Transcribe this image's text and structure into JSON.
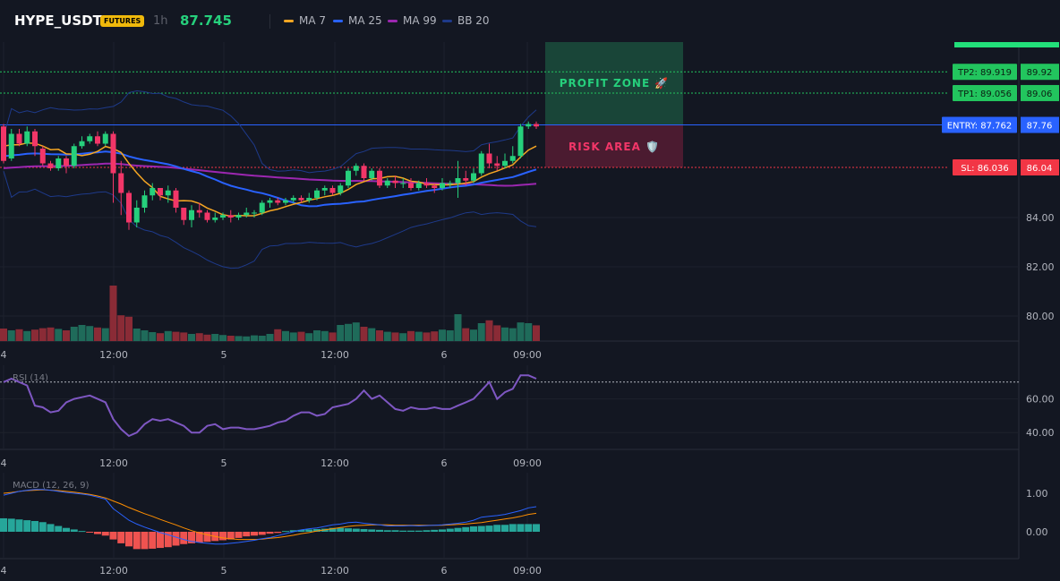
{
  "header": {
    "symbol": "HYPE_USDT",
    "badge": "FUTURES",
    "interval": "1h",
    "price": "87.745",
    "legend": [
      {
        "label": "MA 7",
        "color": "#f5a623"
      },
      {
        "label": "MA 25",
        "color": "#2962ff"
      },
      {
        "label": "MA 99",
        "color": "#9c27b0"
      },
      {
        "label": "BB 20",
        "color": "#1e3a8a"
      }
    ]
  },
  "chart_data": {
    "type": "candlestick",
    "x_ticks": [
      "4",
      "12:00",
      "5",
      "12:00",
      "6",
      "09:00"
    ],
    "y_ticks": [
      "84.00",
      "82.00",
      "80.00"
    ],
    "ohlc": [
      [
        87.7,
        86.3,
        87.8,
        86.2
      ],
      [
        86.4,
        87.4,
        87.6,
        86.3
      ],
      [
        87.4,
        87.0,
        87.6,
        86.9
      ],
      [
        87.0,
        87.5,
        87.7,
        86.9
      ],
      [
        87.5,
        86.9,
        87.6,
        86.5
      ],
      [
        86.8,
        86.2,
        86.9,
        86.1
      ],
      [
        86.2,
        86.0,
        86.3,
        85.9
      ],
      [
        86.0,
        86.4,
        86.5,
        85.9
      ],
      [
        86.4,
        86.1,
        86.5,
        85.8
      ],
      [
        86.1,
        86.9,
        87.0,
        86.0
      ],
      [
        86.9,
        87.1,
        87.3,
        86.8
      ],
      [
        87.1,
        87.3,
        87.4,
        87.0
      ],
      [
        87.3,
        87.0,
        87.5,
        86.9
      ],
      [
        87.0,
        87.4,
        87.5,
        86.9
      ],
      [
        87.4,
        85.8,
        87.5,
        84.6
      ],
      [
        85.8,
        85.0,
        86.3,
        84.1
      ],
      [
        85.0,
        83.8,
        85.1,
        83.5
      ],
      [
        83.8,
        84.4,
        84.7,
        83.6
      ],
      [
        84.4,
        84.9,
        85.1,
        84.2
      ],
      [
        84.9,
        85.2,
        85.4,
        84.7
      ],
      [
        85.2,
        84.9,
        85.2,
        84.7
      ],
      [
        84.9,
        85.1,
        85.3,
        84.6
      ],
      [
        85.1,
        84.4,
        85.2,
        84.2
      ],
      [
        84.4,
        83.9,
        84.4,
        83.7
      ],
      [
        83.9,
        84.3,
        84.5,
        83.6
      ],
      [
        84.3,
        84.2,
        84.6,
        84.0
      ],
      [
        84.2,
        83.9,
        84.3,
        83.8
      ],
      [
        83.9,
        84.0,
        84.2,
        83.8
      ],
      [
        84.0,
        84.1,
        84.2,
        83.9
      ],
      [
        84.1,
        84.0,
        84.3,
        83.8
      ],
      [
        84.0,
        84.1,
        84.2,
        83.9
      ],
      [
        84.1,
        84.2,
        84.4,
        84.0
      ],
      [
        84.2,
        84.2,
        84.3,
        84.0
      ],
      [
        84.2,
        84.6,
        84.7,
        84.1
      ],
      [
        84.6,
        84.7,
        84.8,
        84.4
      ],
      [
        84.7,
        84.6,
        84.8,
        84.5
      ],
      [
        84.6,
        84.7,
        84.8,
        84.5
      ],
      [
        84.7,
        84.8,
        84.9,
        84.6
      ],
      [
        84.8,
        84.7,
        84.9,
        84.6
      ],
      [
        84.7,
        84.8,
        85.0,
        84.6
      ],
      [
        84.8,
        85.1,
        85.2,
        84.7
      ],
      [
        85.1,
        85.2,
        85.3,
        84.9
      ],
      [
        85.2,
        85.0,
        85.3,
        84.9
      ],
      [
        85.0,
        85.3,
        85.4,
        84.9
      ],
      [
        85.3,
        85.9,
        86.0,
        85.2
      ],
      [
        85.9,
        86.1,
        86.2,
        85.7
      ],
      [
        86.1,
        85.6,
        86.2,
        85.5
      ],
      [
        85.6,
        85.9,
        86.0,
        85.5
      ],
      [
        85.9,
        85.3,
        86.0,
        85.2
      ],
      [
        85.3,
        85.5,
        85.6,
        85.2
      ],
      [
        85.5,
        85.4,
        85.7,
        85.2
      ],
      [
        85.4,
        85.4,
        85.6,
        85.2
      ],
      [
        85.4,
        85.2,
        85.6,
        85.1
      ],
      [
        85.2,
        85.4,
        85.5,
        85.1
      ],
      [
        85.4,
        85.3,
        85.6,
        85.2
      ],
      [
        85.3,
        85.2,
        85.4,
        85.0
      ],
      [
        85.2,
        85.4,
        85.6,
        85.1
      ],
      [
        85.4,
        85.4,
        85.5,
        85.2
      ],
      [
        85.4,
        85.6,
        86.3,
        84.8
      ],
      [
        85.6,
        85.5,
        85.9,
        85.3
      ],
      [
        85.5,
        85.8,
        86.0,
        85.4
      ],
      [
        85.8,
        86.6,
        86.7,
        85.7
      ],
      [
        86.6,
        86.2,
        87.0,
        86.0
      ],
      [
        86.2,
        86.1,
        86.5,
        85.9
      ],
      [
        86.1,
        86.3,
        86.6,
        86.0
      ],
      [
        86.3,
        86.5,
        86.9,
        86.2
      ],
      [
        86.5,
        87.7,
        87.8,
        86.4
      ],
      [
        87.7,
        87.8,
        87.9,
        87.6
      ],
      [
        87.8,
        87.7,
        87.9,
        87.6
      ]
    ],
    "volume": [
      0.35,
      0.3,
      0.33,
      0.28,
      0.32,
      0.36,
      0.38,
      0.34,
      0.3,
      0.4,
      0.45,
      0.42,
      0.38,
      0.36,
      1.55,
      0.72,
      0.68,
      0.35,
      0.3,
      0.25,
      0.22,
      0.28,
      0.26,
      0.24,
      0.2,
      0.22,
      0.18,
      0.2,
      0.17,
      0.15,
      0.14,
      0.13,
      0.16,
      0.15,
      0.2,
      0.33,
      0.28,
      0.24,
      0.26,
      0.22,
      0.3,
      0.28,
      0.24,
      0.45,
      0.48,
      0.52,
      0.4,
      0.36,
      0.3,
      0.26,
      0.24,
      0.22,
      0.28,
      0.26,
      0.24,
      0.27,
      0.32,
      0.3,
      0.75,
      0.36,
      0.32,
      0.5,
      0.58,
      0.44,
      0.38,
      0.36,
      0.52,
      0.5,
      0.44
    ],
    "levels": [
      {
        "label": "TP2: 89.919",
        "axis": "89.92",
        "color": "#22c55e"
      },
      {
        "label": "TP1: 89.056",
        "axis": "89.06",
        "color": "#22c55e"
      },
      {
        "label": "ENTRY: 87.762",
        "axis": "87.76",
        "color": "#2962ff"
      },
      {
        "label": "SL: 86.036",
        "axis": "86.04",
        "color": "#f23645"
      }
    ],
    "zones": {
      "profit": "PROFIT ZONE 🚀",
      "risk": "RISK AREA 🛡️"
    },
    "rsi": {
      "label": "RSI (14)",
      "y_ticks": [
        "60.00",
        "40.00"
      ],
      "ylim": [
        30,
        80
      ],
      "values": [
        70,
        72,
        70,
        68,
        56,
        55,
        52,
        53,
        58,
        60,
        61,
        62,
        60,
        58,
        48,
        42,
        38,
        40,
        45,
        48,
        47,
        48,
        46,
        44,
        40,
        40,
        44,
        45,
        42,
        43,
        43,
        42,
        42,
        43,
        44,
        46,
        47,
        50,
        52,
        52,
        50,
        51,
        55,
        56,
        57,
        60,
        65,
        60,
        62,
        58,
        54,
        53,
        55,
        54,
        54,
        55,
        54,
        54,
        56,
        58,
        60,
        65,
        70,
        60,
        64,
        66,
        74,
        74,
        72
      ]
    },
    "macd": {
      "label": "MACD (12, 26, 9)",
      "y_ticks": [
        "1.00",
        "0.00"
      ],
      "ylim": [
        -0.7,
        1.3
      ],
      "macd": [
        0.95,
        1.0,
        1.05,
        1.08,
        1.1,
        1.1,
        1.08,
        1.05,
        1.02,
        1.0,
        0.98,
        0.95,
        0.9,
        0.85,
        0.6,
        0.45,
        0.3,
        0.2,
        0.12,
        0.05,
        -0.02,
        -0.08,
        -0.14,
        -0.2,
        -0.25,
        -0.28,
        -0.3,
        -0.32,
        -0.32,
        -0.3,
        -0.28,
        -0.25,
        -0.22,
        -0.18,
        -0.15,
        -0.1,
        -0.05,
        0.0,
        0.05,
        0.08,
        0.1,
        0.14,
        0.18,
        0.2,
        0.24,
        0.25,
        0.22,
        0.2,
        0.18,
        0.15,
        0.15,
        0.15,
        0.16,
        0.15,
        0.16,
        0.17,
        0.18,
        0.2,
        0.22,
        0.25,
        0.3,
        0.38,
        0.4,
        0.42,
        0.45,
        0.5,
        0.55,
        0.62,
        0.65
      ],
      "signal": [
        1.0,
        1.02,
        1.05,
        1.07,
        1.08,
        1.09,
        1.08,
        1.07,
        1.05,
        1.03,
        1.0,
        0.97,
        0.93,
        0.88,
        0.8,
        0.72,
        0.63,
        0.55,
        0.47,
        0.4,
        0.32,
        0.25,
        0.18,
        0.1,
        0.03,
        -0.03,
        -0.08,
        -0.12,
        -0.16,
        -0.18,
        -0.2,
        -0.2,
        -0.2,
        -0.19,
        -0.17,
        -0.15,
        -0.12,
        -0.09,
        -0.05,
        -0.02,
        0.02,
        0.05,
        0.08,
        0.11,
        0.14,
        0.16,
        0.17,
        0.18,
        0.18,
        0.18,
        0.17,
        0.17,
        0.17,
        0.17,
        0.17,
        0.17,
        0.17,
        0.18,
        0.19,
        0.2,
        0.22,
        0.24,
        0.27,
        0.3,
        0.33,
        0.36,
        0.4,
        0.45,
        0.48
      ],
      "hist": [
        0.35,
        0.34,
        0.32,
        0.3,
        0.28,
        0.25,
        0.2,
        0.15,
        0.1,
        0.06,
        0.02,
        -0.02,
        -0.06,
        -0.1,
        -0.2,
        -0.3,
        -0.38,
        -0.45,
        -0.45,
        -0.44,
        -0.42,
        -0.4,
        -0.36,
        -0.32,
        -0.3,
        -0.28,
        -0.26,
        -0.24,
        -0.22,
        -0.2,
        -0.16,
        -0.12,
        -0.1,
        -0.08,
        -0.05,
        -0.03,
        0.02,
        0.04,
        0.05,
        0.06,
        0.07,
        0.08,
        0.1,
        0.1,
        0.09,
        0.08,
        0.07,
        0.06,
        0.05,
        0.04,
        0.04,
        0.03,
        0.03,
        0.03,
        0.04,
        0.05,
        0.06,
        0.08,
        0.1,
        0.12,
        0.14,
        0.15,
        0.16,
        0.18,
        0.18,
        0.2,
        0.2,
        0.2,
        0.2
      ]
    }
  }
}
